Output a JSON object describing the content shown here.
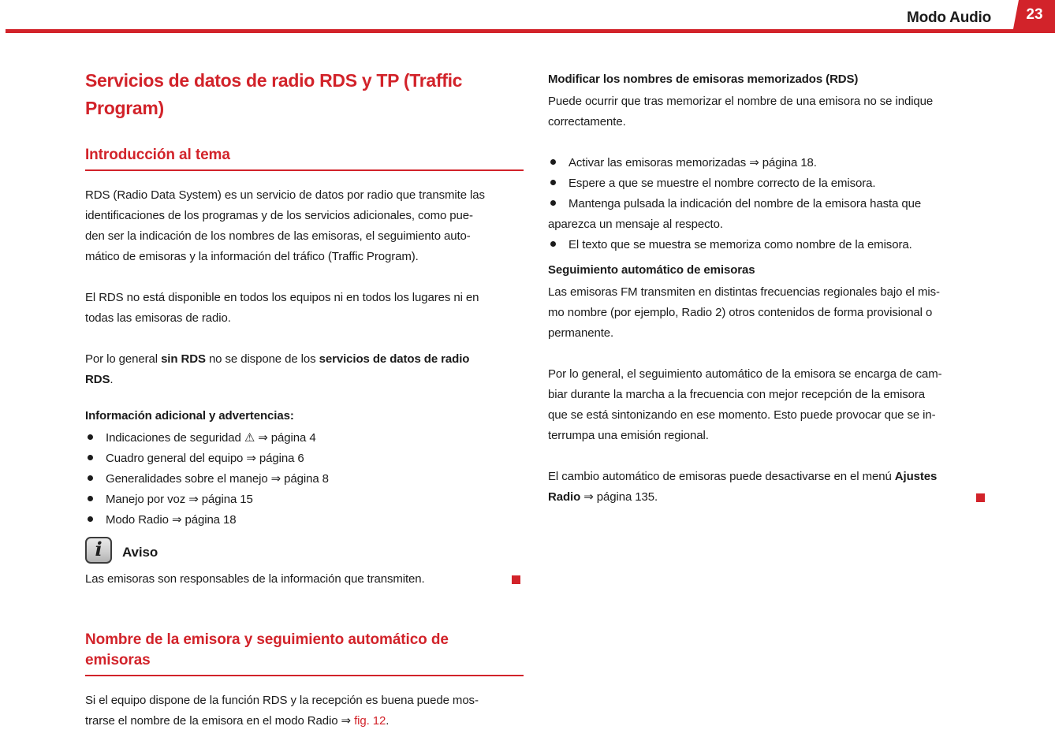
{
  "page": {
    "accent": "#d2232a",
    "text_color": "#1b1b1b",
    "background": "#ffffff"
  },
  "header": {
    "section_title": "Modo Audio",
    "page_number": "23"
  },
  "left": {
    "title": "Servicios de datos de radio RDS y TP (Traffic\nProgram)",
    "intro": {
      "heading": "Introducción al tema",
      "p1": "RDS (Radio Data System) es un servicio de datos por radio que transmite las\nidentificaciones de los programas y de los servicios adicionales, como pue-\nden ser la indicación de los nombres de las emisoras, el seguimiento auto-\nmático de emisoras y la información del tráfico (Traffic Program).",
      "p2": "El RDS no está disponible en todos los equipos ni en todos los lugares ni en\ntodas las emisoras de radio.",
      "p3": {
        "a": "Por lo general ",
        "b": "sin RDS",
        "c": " no se dispone de los ",
        "d": "servicios de datos de radio\nRDS",
        "e": "."
      },
      "info_heading": "Información adicional y advertencias:",
      "bullets": [
        "Indicaciones de seguridad ⚠ ⇒ página 4",
        "Cuadro general del equipo ⇒ página 6",
        "Generalidades sobre el manejo ⇒ página 8",
        "Manejo por voz ⇒ página 15",
        "Modo Radio ⇒ página 18"
      ],
      "note": {
        "icon_glyph": "i",
        "label": "Aviso",
        "text": "Las emisoras son responsables de la información que transmiten."
      }
    },
    "section2": {
      "heading": "Nombre de la emisora y seguimiento automático de\nemisoras",
      "p_a": "Si el equipo dispone de la función RDS y la recepción es buena puede mos-\ntrarse el nombre de la emisora en el modo Radio ⇒ ",
      "p_link": "fig. 12",
      "p_end": "."
    }
  },
  "right": {
    "h1": "Modificar los nombres de emisoras memorizados (RDS)",
    "p1": "Puede ocurrir que tras memorizar el nombre de una emisora no se indique\ncorrectamente.",
    "bullets": [
      "Activar las emisoras memorizadas ⇒ página 18.",
      "Espere a que se muestre el nombre correcto de la emisora.",
      "Mantenga pulsada la indicación del nombre de la emisora hasta que\naparezca un mensaje al respecto.",
      "El texto que se muestra se memoriza como nombre de la emisora."
    ],
    "h2": "Seguimiento automático de emisoras",
    "p2": "Las emisoras FM transmiten en distintas frecuencias regionales bajo el mis-\nmo nombre (por ejemplo, Radio 2) otros contenidos de forma provisional o\npermanente.",
    "p3": "Por lo general, el seguimiento automático de la emisora se encarga de cam-\nbiar durante la marcha a la frecuencia con mejor recepción de la emisora\nque se está sintonizando en ese momento. Esto puede provocar que se in-\nterrumpa una emisión regional.",
    "p4": {
      "a": "El cambio automático de emisoras puede desactivarse en el menú ",
      "b": "Ajustes\nRadio",
      "c": " ⇒ página 135."
    }
  }
}
